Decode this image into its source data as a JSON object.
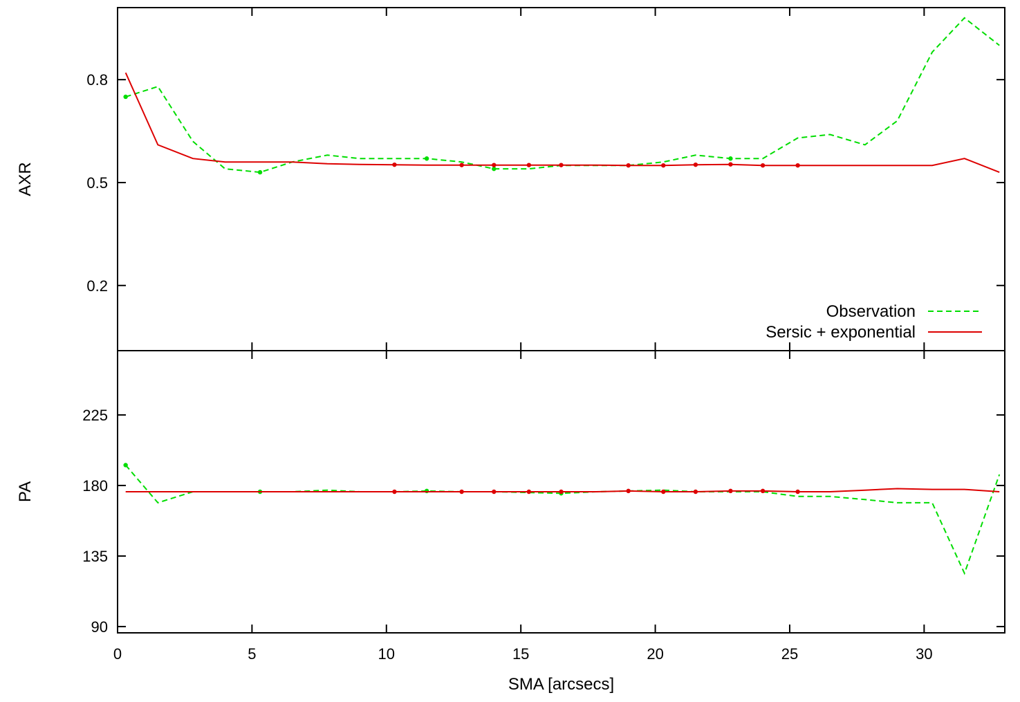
{
  "colors": {
    "observation": "#00dd00",
    "model": "#dd0000",
    "axis": "#000000"
  },
  "legend": {
    "position": "bottom-right of top panel",
    "entries": [
      "Observation",
      "Sersic + exponential"
    ]
  },
  "chart_data": [
    {
      "type": "line",
      "panel": "top",
      "ylabel": "AXR",
      "xlabel": "",
      "xlim": [
        0,
        33
      ],
      "ylim": [
        0.01,
        1.01
      ],
      "yticks": [
        0.2,
        0.5,
        0.8
      ],
      "ytick_labels": [
        "0.2",
        "0.5",
        "0.8"
      ],
      "grid": false,
      "series": [
        {
          "name": "Observation",
          "style": "dashed",
          "x": [
            0.3,
            1.5,
            2.8,
            4.0,
            5.3,
            6.5,
            7.8,
            9.0,
            10.3,
            11.5,
            12.8,
            14.0,
            15.3,
            16.5,
            17.8,
            19.0,
            20.3,
            21.5,
            22.8,
            24.0,
            25.3,
            26.5,
            27.8,
            29.0,
            30.3,
            31.5,
            32.8
          ],
          "y": [
            0.75,
            0.78,
            0.62,
            0.54,
            0.53,
            0.56,
            0.58,
            0.57,
            0.57,
            0.57,
            0.56,
            0.54,
            0.54,
            0.55,
            0.55,
            0.55,
            0.56,
            0.58,
            0.57,
            0.57,
            0.63,
            0.64,
            0.61,
            0.68,
            0.88,
            0.98,
            0.9
          ],
          "markers_x": [
            0.3,
            5.3,
            11.5,
            14.0,
            22.8
          ]
        },
        {
          "name": "Sersic + exponential",
          "style": "solid",
          "x": [
            0.3,
            1.5,
            2.8,
            4.0,
            5.3,
            6.5,
            7.8,
            9.0,
            10.3,
            11.5,
            12.8,
            14.0,
            15.3,
            16.5,
            17.8,
            19.0,
            20.3,
            21.5,
            22.8,
            24.0,
            25.3,
            26.5,
            27.8,
            29.0,
            30.3,
            31.5,
            32.8
          ],
          "y": [
            0.82,
            0.61,
            0.57,
            0.56,
            0.56,
            0.56,
            0.555,
            0.553,
            0.552,
            0.551,
            0.551,
            0.551,
            0.551,
            0.551,
            0.551,
            0.55,
            0.55,
            0.552,
            0.553,
            0.55,
            0.55,
            0.55,
            0.55,
            0.55,
            0.55,
            0.57,
            0.53
          ],
          "markers_x": [
            10.3,
            12.8,
            14.0,
            15.3,
            16.5,
            19.0,
            20.3,
            21.5,
            22.8,
            24.0,
            25.3
          ]
        }
      ]
    },
    {
      "type": "line",
      "panel": "bottom",
      "ylabel": "PA",
      "xlabel": "SMA [arcsecs]",
      "xlim": [
        0,
        33
      ],
      "ylim": [
        86,
        266
      ],
      "yticks": [
        90,
        135,
        180,
        225
      ],
      "ytick_labels": [
        "90",
        "135",
        "180",
        "225"
      ],
      "xticks": [
        0,
        5,
        10,
        15,
        20,
        25,
        30
      ],
      "xtick_labels": [
        "0",
        "5",
        "10",
        "15",
        "20",
        "25",
        "30"
      ],
      "grid": false,
      "series": [
        {
          "name": "Observation",
          "style": "dashed",
          "x": [
            0.3,
            1.5,
            2.8,
            4.0,
            5.3,
            6.5,
            7.8,
            9.0,
            10.3,
            11.5,
            12.8,
            14.0,
            15.3,
            16.5,
            17.8,
            19.0,
            20.3,
            21.5,
            22.8,
            24.0,
            25.3,
            26.5,
            27.8,
            29.0,
            30.3,
            31.5,
            32.8
          ],
          "y": [
            193,
            169,
            176,
            176,
            176,
            176,
            177,
            176,
            176,
            176.5,
            176,
            176,
            175.5,
            175,
            176,
            176.5,
            177,
            176,
            176,
            176,
            173,
            173,
            171,
            169,
            169,
            124,
            187
          ],
          "markers_x": [
            0.3,
            5.3,
            11.5,
            16.5
          ]
        },
        {
          "name": "Sersic + exponential",
          "style": "solid",
          "x": [
            0.3,
            1.5,
            2.8,
            4.0,
            5.3,
            6.5,
            7.8,
            9.0,
            10.3,
            11.5,
            12.8,
            14.0,
            15.3,
            16.5,
            17.8,
            19.0,
            20.3,
            21.5,
            22.8,
            24.0,
            25.3,
            26.5,
            27.8,
            29.0,
            30.3,
            31.5,
            32.8
          ],
          "y": [
            176,
            176,
            176,
            176,
            176,
            176,
            176,
            176,
            176,
            176,
            176,
            176,
            176,
            176,
            176,
            176.5,
            176,
            176,
            176.5,
            176.5,
            176,
            176,
            177,
            178,
            177.5,
            177.5,
            176
          ],
          "markers_x": [
            10.3,
            12.8,
            14.0,
            15.3,
            16.5,
            19.0,
            20.3,
            21.5,
            22.8,
            24.0,
            25.3
          ]
        }
      ]
    }
  ]
}
